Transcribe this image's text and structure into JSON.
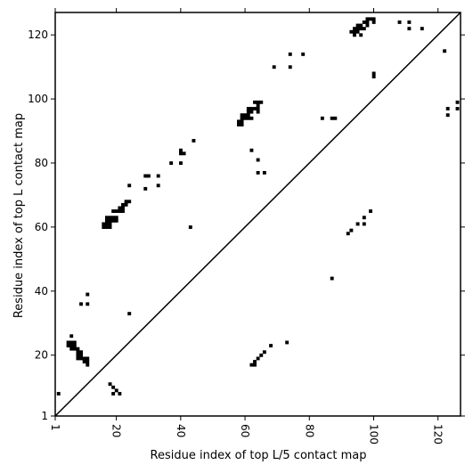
{
  "chart_data": {
    "type": "scatter",
    "xlabel": "Residue index of top L/5 contact map",
    "ylabel": "Residue index of top L contact map",
    "xlim": [
      1,
      127
    ],
    "ylim": [
      1,
      127
    ],
    "xticks": [
      {
        "value": 1,
        "label": "1"
      },
      {
        "value": 20,
        "label": "20"
      },
      {
        "value": 40,
        "label": "40"
      },
      {
        "value": 60,
        "label": "60"
      },
      {
        "value": 80,
        "label": "80"
      },
      {
        "value": 100,
        "label": "100"
      },
      {
        "value": 120,
        "label": "120"
      }
    ],
    "yticks": [
      {
        "value": 1,
        "label": "1"
      },
      {
        "value": 20,
        "label": "20"
      },
      {
        "value": 40,
        "label": "40"
      },
      {
        "value": 60,
        "label": "60"
      },
      {
        "value": 80,
        "label": "80"
      },
      {
        "value": 100,
        "label": "100"
      },
      {
        "value": 120,
        "label": "120"
      }
    ],
    "xtick_rotation": "vertical",
    "grid": false,
    "diagonal": true,
    "marker": "filled square",
    "color": "#000000",
    "series": [
      {
        "points": [
          [
            17,
            62
          ],
          [
            16,
            61
          ],
          [
            17,
            61
          ],
          [
            18,
            61
          ],
          [
            17,
            60
          ],
          [
            16,
            60
          ],
          [
            18,
            60
          ],
          [
            17,
            63
          ],
          [
            18,
            63
          ],
          [
            18,
            62
          ],
          [
            19,
            62
          ],
          [
            20,
            62
          ],
          [
            19,
            63
          ],
          [
            20,
            63
          ],
          [
            19,
            65
          ],
          [
            20,
            65
          ],
          [
            21,
            65
          ],
          [
            21,
            66
          ],
          [
            22,
            66
          ],
          [
            22,
            65
          ],
          [
            22,
            67
          ],
          [
            23,
            67
          ],
          [
            23,
            68
          ],
          [
            24,
            68
          ],
          [
            24,
            73
          ],
          [
            24,
            33
          ],
          [
            29,
            76
          ],
          [
            30,
            76
          ],
          [
            29,
            72
          ],
          [
            33,
            76
          ],
          [
            33,
            73
          ],
          [
            37,
            80
          ],
          [
            40,
            80
          ],
          [
            40,
            84
          ],
          [
            41,
            83
          ],
          [
            40,
            83
          ],
          [
            44,
            87
          ],
          [
            43,
            60
          ],
          [
            58,
            92
          ],
          [
            59,
            92
          ],
          [
            59,
            93
          ],
          [
            58,
            93
          ],
          [
            59,
            94
          ],
          [
            60,
            94
          ],
          [
            60,
            95
          ],
          [
            59,
            95
          ],
          [
            61,
            94
          ],
          [
            61,
            95
          ],
          [
            61,
            96
          ],
          [
            62,
            96
          ],
          [
            62,
            94
          ],
          [
            61,
            97
          ],
          [
            62,
            97
          ],
          [
            63,
            97
          ],
          [
            63,
            99
          ],
          [
            64,
            99
          ],
          [
            65,
            99
          ],
          [
            64,
            98
          ],
          [
            64,
            97
          ],
          [
            64,
            96
          ],
          [
            62,
            84
          ],
          [
            64,
            81
          ],
          [
            64,
            77
          ],
          [
            66,
            77
          ],
          [
            69,
            110
          ],
          [
            74,
            110
          ],
          [
            74,
            114
          ],
          [
            78,
            114
          ],
          [
            84,
            94
          ],
          [
            87,
            94
          ],
          [
            88,
            94
          ],
          [
            87,
            44
          ],
          [
            93,
            121
          ],
          [
            94,
            121
          ],
          [
            95,
            121
          ],
          [
            94,
            122
          ],
          [
            95,
            122
          ],
          [
            95,
            123
          ],
          [
            96,
            123
          ],
          [
            96,
            122
          ],
          [
            94,
            120
          ],
          [
            96,
            120
          ],
          [
            97,
            122
          ],
          [
            97,
            124
          ],
          [
            98,
            124
          ],
          [
            98,
            123
          ],
          [
            98,
            125
          ],
          [
            99,
            125
          ],
          [
            100,
            125
          ],
          [
            100,
            124
          ],
          [
            100,
            108
          ],
          [
            100,
            107
          ],
          [
            108,
            124
          ],
          [
            111,
            124
          ],
          [
            111,
            122
          ],
          [
            115,
            122
          ],
          [
            122,
            115
          ],
          [
            123,
            97
          ],
          [
            123,
            95
          ],
          [
            126,
            97
          ],
          [
            126,
            99
          ],
          [
            5,
            24
          ],
          [
            5,
            23
          ],
          [
            6,
            24
          ],
          [
            6,
            23
          ],
          [
            6,
            22
          ],
          [
            7,
            22
          ],
          [
            7,
            23
          ],
          [
            6,
            26
          ],
          [
            7,
            24
          ],
          [
            8,
            22
          ],
          [
            8,
            21
          ],
          [
            8,
            20
          ],
          [
            9,
            21
          ],
          [
            9,
            20
          ],
          [
            9,
            19
          ],
          [
            8,
            19
          ],
          [
            10,
            19
          ],
          [
            10,
            18
          ],
          [
            11,
            19
          ],
          [
            11,
            18
          ],
          [
            11,
            17
          ],
          [
            9,
            36
          ],
          [
            11,
            36
          ],
          [
            11,
            39
          ],
          [
            2,
            8
          ],
          [
            18,
            11
          ],
          [
            19,
            10
          ],
          [
            20,
            9
          ],
          [
            19,
            8
          ],
          [
            21,
            8
          ],
          [
            62,
            17
          ],
          [
            63,
            18
          ],
          [
            64,
            19
          ],
          [
            63,
            17
          ],
          [
            65,
            20
          ],
          [
            66,
            21
          ],
          [
            68,
            23
          ],
          [
            73,
            24
          ],
          [
            92,
            58
          ],
          [
            93,
            59
          ],
          [
            95,
            61
          ],
          [
            97,
            61
          ],
          [
            97,
            63
          ],
          [
            99,
            65
          ]
        ]
      }
    ]
  }
}
